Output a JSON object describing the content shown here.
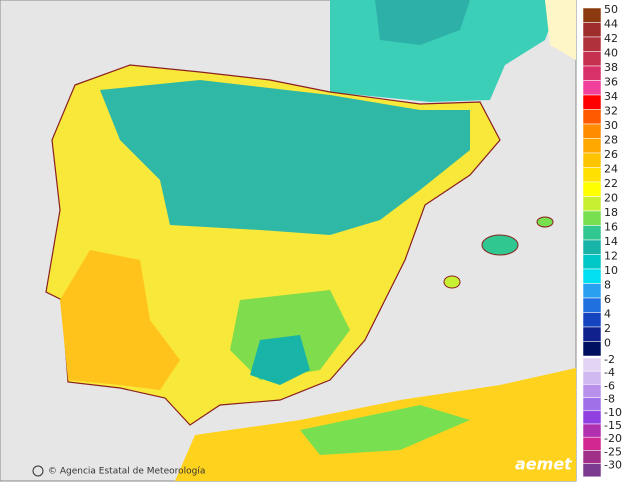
{
  "credit": "© Agencia Estatal de Meteorología",
  "logo": "aemet",
  "legend": {
    "upper": [
      {
        "label": 50,
        "color": "#8b3a0f"
      },
      {
        "label": 44,
        "color": "#9e2c2c"
      },
      {
        "label": 42,
        "color": "#b0303c"
      },
      {
        "label": 40,
        "color": "#c4304e"
      },
      {
        "label": 38,
        "color": "#d83068"
      },
      {
        "label": 36,
        "color": "#f0409c"
      },
      {
        "label": 34,
        "color": "#ff0000"
      },
      {
        "label": 32,
        "color": "#ff5a00"
      },
      {
        "label": 30,
        "color": "#ff8c00"
      },
      {
        "label": 28,
        "color": "#ffa800"
      },
      {
        "label": 26,
        "color": "#ffc400"
      },
      {
        "label": 24,
        "color": "#ffe000"
      },
      {
        "label": 22,
        "color": "#ffff00"
      },
      {
        "label": 20,
        "color": "#c8f032"
      },
      {
        "label": 18,
        "color": "#78e050"
      },
      {
        "label": 16,
        "color": "#30c890"
      },
      {
        "label": 14,
        "color": "#18b4a8"
      },
      {
        "label": 12,
        "color": "#00c8c8"
      },
      {
        "label": 10,
        "color": "#00e0f0"
      },
      {
        "label": 8,
        "color": "#2aa0f0"
      },
      {
        "label": 6,
        "color": "#2070e0"
      },
      {
        "label": 4,
        "color": "#1444c0"
      },
      {
        "label": 2,
        "color": "#10208c"
      },
      {
        "label": 0,
        "color": "#001060"
      }
    ],
    "lower": [
      {
        "label": -2,
        "color": "#e4d4f4"
      },
      {
        "label": -4,
        "color": "#d0b8f0"
      },
      {
        "label": -6,
        "color": "#b890ec"
      },
      {
        "label": -8,
        "color": "#a070e8"
      },
      {
        "label": -10,
        "color": "#9040e0"
      },
      {
        "label": -15,
        "color": "#b030b0"
      },
      {
        "label": -20,
        "color": "#d02890"
      },
      {
        "label": -25,
        "color": "#a03088"
      },
      {
        "label": -30,
        "color": "#7a3a90"
      }
    ]
  }
}
